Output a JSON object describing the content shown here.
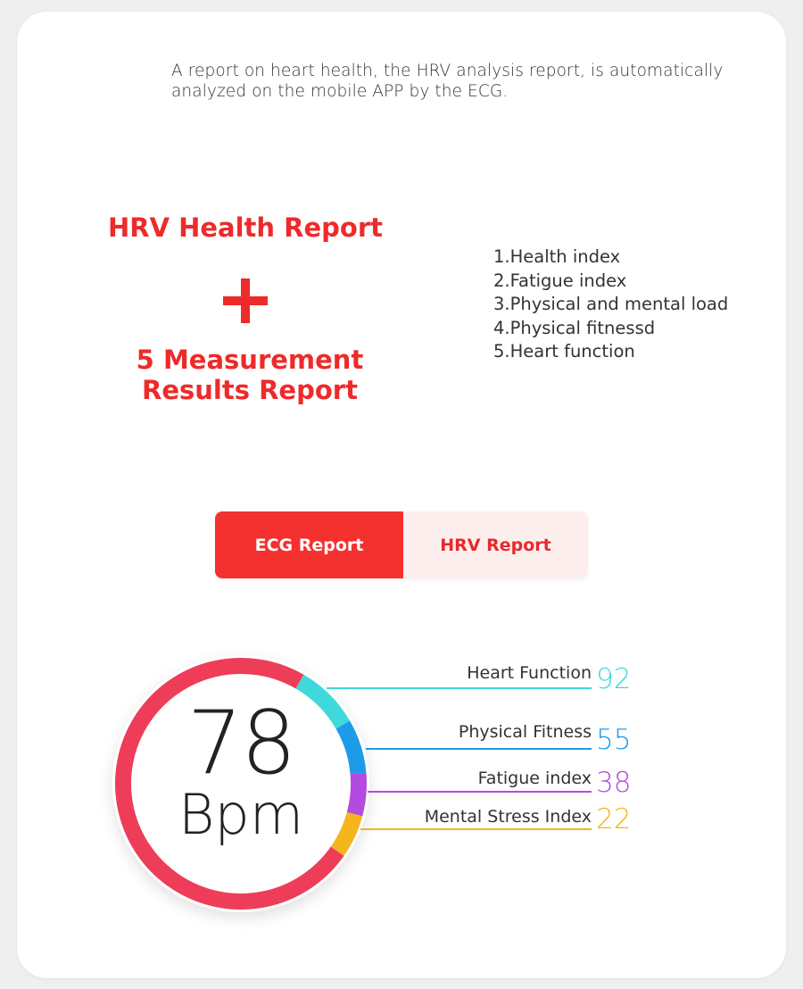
{
  "intro": "A report on heart health, the HRV analysis report, is automatically analyzed on the mobile APP by the ECG.",
  "hrv_title": "HRV Health Report",
  "measure_title_line1": "5 Measurement",
  "measure_title_line2": "Results Report",
  "index_list": [
    "1.Health index",
    "2.Fatigue index",
    "3.Physical and mental load",
    "4.Physical fitnessd",
    "5.Heart function"
  ],
  "tabs": {
    "ecg": "ECG Report",
    "hrv": "HRV Report",
    "active": "ecg"
  },
  "colors": {
    "accent": "#ee2a2a",
    "heart_function": "#3fd9dc",
    "physical_fitness": "#1e9be8",
    "fatigue": "#b44be0",
    "mental_stress": "#f5b51c",
    "ring": "#ee3d58"
  },
  "gauge": {
    "value": "78",
    "unit": "Bpm",
    "metrics": [
      {
        "label": "Heart Function",
        "value": "92",
        "color": "#3fd9dc"
      },
      {
        "label": "Physical Fitness",
        "value": "55",
        "color": "#1e9be8"
      },
      {
        "label": "Fatigue index",
        "value": "38",
        "color": "#b44be0"
      },
      {
        "label": "Mental Stress Index",
        "value": "22",
        "color": "#f5b51c"
      }
    ]
  }
}
